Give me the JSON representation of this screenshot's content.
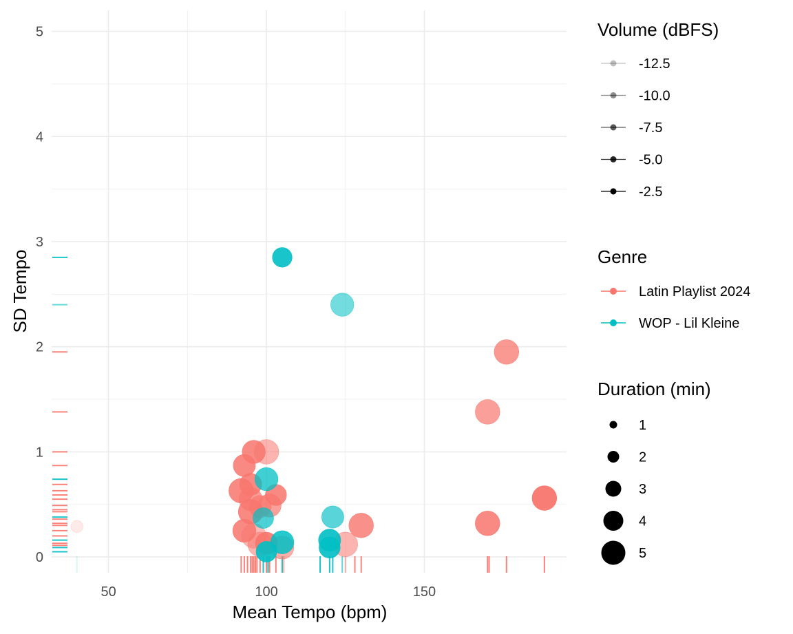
{
  "chart_data": {
    "type": "scatter",
    "xlabel": "Mean Tempo (bpm)",
    "ylabel": "SD Tempo",
    "xlim": [
      32,
      195
    ],
    "ylim": [
      -0.15,
      5.2
    ],
    "xticks": [
      50,
      100,
      150
    ],
    "yticks": [
      0,
      1,
      2,
      3,
      4,
      5
    ],
    "grid": true,
    "legend_placement": "right",
    "colors": {
      "Latin Playlist 2024": "#F8766D",
      "WOP - Lil Kleine": "#00BFC4"
    },
    "legends": {
      "volume": {
        "title": "Volume (dBFS)",
        "entries": [
          "-12.5",
          "-10.0",
          "-7.5",
          "-5.0",
          "-2.5"
        ],
        "alphas": [
          0.25,
          0.45,
          0.65,
          0.85,
          1.0
        ]
      },
      "genre": {
        "title": "Genre",
        "entries": [
          "Latin Playlist 2024",
          "WOP - Lil Kleine"
        ]
      },
      "duration": {
        "title": "Duration (min)",
        "entries": [
          "1",
          "2",
          "3",
          "4",
          "5"
        ],
        "values": [
          1,
          2,
          3,
          4,
          5
        ]
      }
    },
    "series": [
      {
        "name": "Latin Playlist 2024",
        "points": [
          {
            "x": 176,
            "y": 1.95,
            "dur": 3.3,
            "alpha": 0.75
          },
          {
            "x": 170,
            "y": 1.38,
            "dur": 3.3,
            "alpha": 0.7
          },
          {
            "x": 170,
            "y": 0.32,
            "dur": 3.3,
            "alpha": 0.85
          },
          {
            "x": 188,
            "y": 0.56,
            "dur": 3.3,
            "alpha": 0.95
          },
          {
            "x": 130,
            "y": 0.3,
            "dur": 3.3,
            "alpha": 0.8
          },
          {
            "x": 125,
            "y": 0.12,
            "dur": 3.3,
            "alpha": 0.55
          },
          {
            "x": 96,
            "y": 1.0,
            "dur": 3.0,
            "alpha": 0.85
          },
          {
            "x": 100,
            "y": 1.0,
            "dur": 3.3,
            "alpha": 0.55
          },
          {
            "x": 93,
            "y": 0.87,
            "dur": 2.8,
            "alpha": 0.85
          },
          {
            "x": 95,
            "y": 0.69,
            "dur": 2.8,
            "alpha": 0.85
          },
          {
            "x": 92,
            "y": 0.63,
            "dur": 3.3,
            "alpha": 0.85
          },
          {
            "x": 95,
            "y": 0.55,
            "dur": 3.0,
            "alpha": 0.7
          },
          {
            "x": 103,
            "y": 0.59,
            "dur": 2.6,
            "alpha": 0.85
          },
          {
            "x": 101,
            "y": 0.49,
            "dur": 3.0,
            "alpha": 0.7
          },
          {
            "x": 98,
            "y": 0.48,
            "dur": 2.8,
            "alpha": 0.7
          },
          {
            "x": 95,
            "y": 0.43,
            "dur": 3.3,
            "alpha": 0.85
          },
          {
            "x": 93,
            "y": 0.25,
            "dur": 3.0,
            "alpha": 0.85
          },
          {
            "x": 96,
            "y": 0.2,
            "dur": 3.3,
            "alpha": 0.5
          },
          {
            "x": 98,
            "y": 0.12,
            "dur": 3.3,
            "alpha": 0.55
          },
          {
            "x": 100,
            "y": 0.13,
            "dur": 2.8,
            "alpha": 0.9
          },
          {
            "x": 105,
            "y": 0.09,
            "dur": 3.0,
            "alpha": 0.6
          },
          {
            "x": 40,
            "y": 0.29,
            "dur": 0.8,
            "alpha": 0.15
          }
        ]
      },
      {
        "name": "WOP - Lil Kleine",
        "points": [
          {
            "x": 105,
            "y": 2.85,
            "dur": 2.3,
            "alpha": 0.9
          },
          {
            "x": 124,
            "y": 2.4,
            "dur": 3.0,
            "alpha": 0.55
          },
          {
            "x": 100,
            "y": 0.74,
            "dur": 3.0,
            "alpha": 0.75
          },
          {
            "x": 121,
            "y": 0.38,
            "dur": 2.8,
            "alpha": 0.65
          },
          {
            "x": 99,
            "y": 0.37,
            "dur": 2.5,
            "alpha": 0.7
          },
          {
            "x": 105,
            "y": 0.14,
            "dur": 3.0,
            "alpha": 0.85
          },
          {
            "x": 120,
            "y": 0.16,
            "dur": 2.8,
            "alpha": 0.9
          },
          {
            "x": 120,
            "y": 0.09,
            "dur": 2.6,
            "alpha": 0.9
          },
          {
            "x": 100,
            "y": 0.05,
            "dur": 2.5,
            "alpha": 0.9
          }
        ]
      }
    ],
    "rug_x": [
      {
        "v": 40,
        "g": 1,
        "a": 0.15
      },
      {
        "v": 92,
        "g": 0,
        "a": 0.9
      },
      {
        "v": 93,
        "g": 0,
        "a": 0.9
      },
      {
        "v": 94,
        "g": 0,
        "a": 0.9
      },
      {
        "v": 95,
        "g": 0,
        "a": 0.9
      },
      {
        "v": 95.5,
        "g": 0,
        "a": 0.9
      },
      {
        "v": 96,
        "g": 0,
        "a": 0.9
      },
      {
        "v": 96.5,
        "g": 0,
        "a": 0.9
      },
      {
        "v": 97,
        "g": 0,
        "a": 0.9
      },
      {
        "v": 98,
        "g": 0,
        "a": 0.9
      },
      {
        "v": 99,
        "g": 1,
        "a": 0.9
      },
      {
        "v": 100,
        "g": 0,
        "a": 0.9
      },
      {
        "v": 100.5,
        "g": 1,
        "a": 0.9
      },
      {
        "v": 101,
        "g": 0,
        "a": 0.9
      },
      {
        "v": 103,
        "g": 0,
        "a": 0.9
      },
      {
        "v": 105,
        "g": 1,
        "a": 0.9
      },
      {
        "v": 105.5,
        "g": 0,
        "a": 0.6
      },
      {
        "v": 117,
        "g": 1,
        "a": 0.9
      },
      {
        "v": 120,
        "g": 1,
        "a": 0.9
      },
      {
        "v": 121,
        "g": 1,
        "a": 0.9
      },
      {
        "v": 124,
        "g": 1,
        "a": 0.6
      },
      {
        "v": 125,
        "g": 0,
        "a": 0.6
      },
      {
        "v": 128,
        "g": 0,
        "a": 0.9
      },
      {
        "v": 130,
        "g": 0,
        "a": 0.9
      },
      {
        "v": 170,
        "g": 0,
        "a": 0.9
      },
      {
        "v": 170.5,
        "g": 0,
        "a": 0.9
      },
      {
        "v": 176,
        "g": 0,
        "a": 0.9
      },
      {
        "v": 188,
        "g": 0,
        "a": 0.9
      }
    ],
    "rug_y": [
      {
        "v": 2.85,
        "g": 1,
        "a": 0.9
      },
      {
        "v": 2.4,
        "g": 1,
        "a": 0.6
      },
      {
        "v": 1.95,
        "g": 0,
        "a": 0.9
      },
      {
        "v": 1.38,
        "g": 0,
        "a": 0.9
      },
      {
        "v": 1.0,
        "g": 0,
        "a": 0.9
      },
      {
        "v": 0.87,
        "g": 0,
        "a": 0.9
      },
      {
        "v": 0.74,
        "g": 1,
        "a": 0.9
      },
      {
        "v": 0.69,
        "g": 0,
        "a": 0.9
      },
      {
        "v": 0.63,
        "g": 0,
        "a": 0.9
      },
      {
        "v": 0.59,
        "g": 0,
        "a": 0.9
      },
      {
        "v": 0.55,
        "g": 0,
        "a": 0.9
      },
      {
        "v": 0.49,
        "g": 0,
        "a": 0.9
      },
      {
        "v": 0.45,
        "g": 0,
        "a": 0.9
      },
      {
        "v": 0.43,
        "g": 0,
        "a": 0.9
      },
      {
        "v": 0.38,
        "g": 1,
        "a": 0.9
      },
      {
        "v": 0.36,
        "g": 0,
        "a": 0.9
      },
      {
        "v": 0.32,
        "g": 0,
        "a": 0.9
      },
      {
        "v": 0.3,
        "g": 0,
        "a": 0.9
      },
      {
        "v": 0.25,
        "g": 0,
        "a": 0.9
      },
      {
        "v": 0.2,
        "g": 0,
        "a": 0.9
      },
      {
        "v": 0.16,
        "g": 1,
        "a": 0.9
      },
      {
        "v": 0.13,
        "g": 0,
        "a": 0.9
      },
      {
        "v": 0.11,
        "g": 0,
        "a": 0.9
      },
      {
        "v": 0.09,
        "g": 1,
        "a": 0.9
      },
      {
        "v": 0.05,
        "g": 1,
        "a": 0.9
      }
    ]
  }
}
